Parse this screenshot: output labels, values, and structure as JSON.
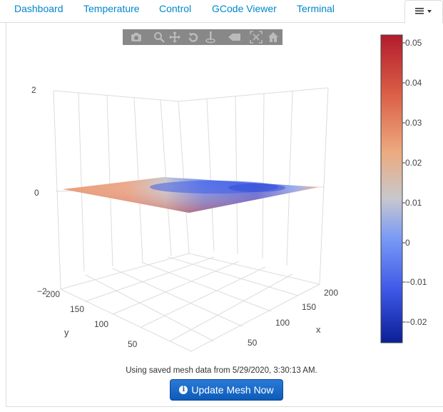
{
  "tabs": [
    {
      "label": "Dashboard"
    },
    {
      "label": "Temperature"
    },
    {
      "label": "Control"
    },
    {
      "label": "GCode Viewer"
    },
    {
      "label": "Terminal"
    }
  ],
  "menu": {
    "icon": "hamburger-icon",
    "caret": "caret-down-icon"
  },
  "toolbar": {
    "icons": [
      "camera-icon",
      "zoom-icon",
      "pan-icon",
      "orbit-rotation-icon",
      "turntable-rotation-icon",
      "reset-camera-default-icon",
      "reset-camera-last-save-icon",
      "home-icon"
    ]
  },
  "chart_data": {
    "type": "surface",
    "z_axis": {
      "ticks": [
        "2",
        "0",
        "−2"
      ],
      "range": [
        -2,
        2
      ]
    },
    "x_axis": {
      "label": "x",
      "ticks": [
        "200",
        "150",
        "100",
        "50"
      ]
    },
    "y_axis": {
      "label": "y",
      "ticks": [
        "200",
        "150",
        "100",
        "50"
      ]
    },
    "colorbar": {
      "ticks": [
        "0.05",
        "0.04",
        "0.03",
        "0.02",
        "0.01",
        "0",
        "−0.01",
        "−0.02"
      ],
      "range": [
        -0.025,
        0.052
      ],
      "colorscale": [
        "#0a1e96",
        "#3d58e6",
        "#7a9af6",
        "#c8c8cc",
        "#ecaa7f",
        "#dc6248",
        "#b31b2c"
      ]
    }
  },
  "status": {
    "text": "Using saved mesh data from 5/29/2020, 3:30:13 AM."
  },
  "update_button": {
    "label": "Update Mesh Now",
    "icon": "info-circle-icon"
  }
}
